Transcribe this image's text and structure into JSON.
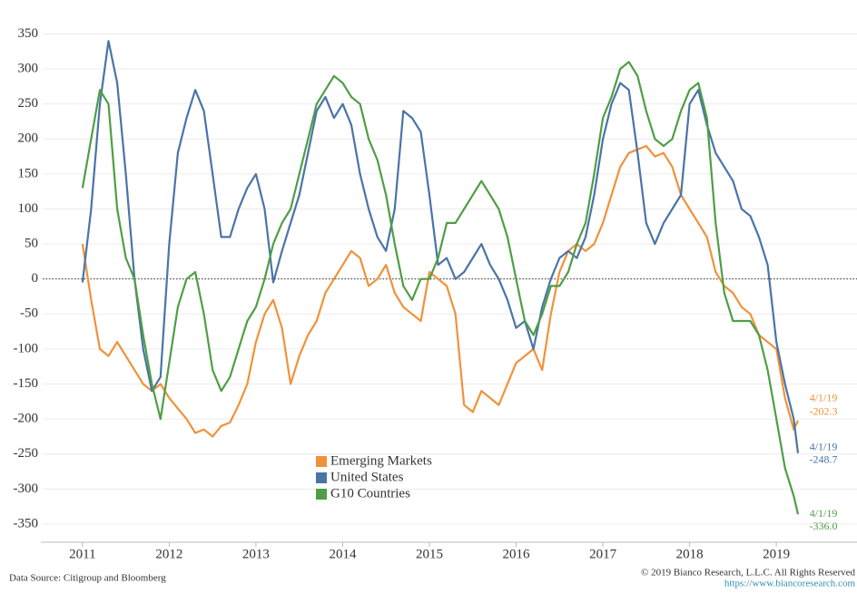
{
  "chart_data": {
    "type": "line",
    "x": [
      2011,
      2011.1,
      2011.2,
      2011.3,
      2011.4,
      2011.5,
      2011.6,
      2011.7,
      2011.8,
      2011.9,
      2012,
      2012.1,
      2012.2,
      2012.3,
      2012.4,
      2012.5,
      2012.6,
      2012.7,
      2012.8,
      2012.9,
      2013,
      2013.1,
      2013.2,
      2013.3,
      2013.4,
      2013.5,
      2013.6,
      2013.7,
      2013.8,
      2013.9,
      2014,
      2014.1,
      2014.2,
      2014.3,
      2014.4,
      2014.5,
      2014.6,
      2014.7,
      2014.8,
      2014.9,
      2015,
      2015.1,
      2015.2,
      2015.3,
      2015.4,
      2015.5,
      2015.6,
      2015.7,
      2015.8,
      2015.9,
      2016,
      2016.1,
      2016.2,
      2016.3,
      2016.4,
      2016.5,
      2016.6,
      2016.7,
      2016.8,
      2016.9,
      2017,
      2017.1,
      2017.2,
      2017.3,
      2017.4,
      2017.5,
      2017.6,
      2017.7,
      2017.8,
      2017.9,
      2018,
      2018.1,
      2018.2,
      2018.3,
      2018.4,
      2018.5,
      2018.6,
      2018.7,
      2018.8,
      2018.9,
      2019,
      2019.1,
      2019.2,
      2019.25
    ],
    "series": [
      {
        "name": "Emerging Markets",
        "color": "#f0923a",
        "end_date": "4/1/19",
        "end_label": "-202.3",
        "values": [
          50,
          -30,
          -100,
          -110,
          -90,
          -110,
          -130,
          -150,
          -160,
          -150,
          -170,
          -185,
          -200,
          -220,
          -215,
          -225,
          -210,
          -205,
          -180,
          -150,
          -90,
          -50,
          -30,
          -70,
          -150,
          -110,
          -80,
          -60,
          -20,
          0,
          20,
          40,
          30,
          -10,
          0,
          20,
          -20,
          -40,
          -50,
          -60,
          10,
          0,
          -10,
          -50,
          -180,
          -190,
          -160,
          -170,
          -180,
          -150,
          -120,
          -110,
          -100,
          -130,
          -50,
          10,
          40,
          50,
          40,
          50,
          80,
          120,
          160,
          180,
          185,
          190,
          175,
          180,
          160,
          120,
          100,
          80,
          60,
          10,
          -10,
          -20,
          -40,
          -50,
          -80,
          -90,
          -100,
          -170,
          -215,
          -202.3
        ]
      },
      {
        "name": "United States",
        "color": "#4a74a8",
        "end_date": "4/1/19",
        "end_label": "-248.7",
        "values": [
          -5,
          100,
          250,
          340,
          280,
          150,
          0,
          -100,
          -160,
          -140,
          50,
          180,
          230,
          270,
          240,
          150,
          60,
          60,
          100,
          130,
          150,
          100,
          -5,
          40,
          80,
          120,
          180,
          240,
          260,
          230,
          250,
          220,
          150,
          100,
          60,
          40,
          100,
          240,
          230,
          210,
          120,
          20,
          30,
          0,
          10,
          30,
          50,
          20,
          0,
          -30,
          -70,
          -60,
          -100,
          -40,
          0,
          30,
          40,
          30,
          60,
          120,
          200,
          250,
          280,
          270,
          180,
          80,
          50,
          80,
          100,
          120,
          250,
          270,
          220,
          180,
          160,
          140,
          100,
          90,
          60,
          20,
          -90,
          -150,
          -200,
          -248.7
        ]
      },
      {
        "name": "G10 Countries",
        "color": "#4f9e45",
        "end_date": "4/1/19",
        "end_label": "-336.0",
        "values": [
          130,
          200,
          270,
          250,
          100,
          30,
          0,
          -80,
          -150,
          -200,
          -120,
          -40,
          0,
          10,
          -50,
          -130,
          -160,
          -140,
          -100,
          -60,
          -40,
          0,
          50,
          80,
          100,
          150,
          200,
          250,
          270,
          290,
          280,
          260,
          250,
          200,
          170,
          120,
          50,
          -10,
          -30,
          0,
          0,
          30,
          80,
          80,
          100,
          120,
          140,
          120,
          100,
          60,
          0,
          -60,
          -80,
          -50,
          -10,
          -10,
          10,
          50,
          80,
          150,
          230,
          260,
          300,
          310,
          290,
          240,
          200,
          190,
          200,
          240,
          270,
          280,
          230,
          80,
          -20,
          -60,
          -60,
          -60,
          -80,
          -130,
          -200,
          -270,
          -310,
          -336.0
        ]
      }
    ],
    "xlim": [
      2010.52,
      2019.93
    ],
    "xticks": [
      2011,
      2012,
      2013,
      2014,
      2015,
      2016,
      2017,
      2018,
      2019
    ],
    "ylim": [
      -376,
      370
    ],
    "yticks": [
      -350,
      -300,
      -250,
      -200,
      -150,
      -100,
      -50,
      0,
      50,
      100,
      150,
      200,
      250,
      300,
      350
    ],
    "grid": true,
    "zero_line": true,
    "source": "Data Source: Citigroup and Bloomberg",
    "copyright": "© 2019 Bianco Research, L.L.C. All Rights Reserved",
    "url": "https://www.biancoresearch.com"
  }
}
